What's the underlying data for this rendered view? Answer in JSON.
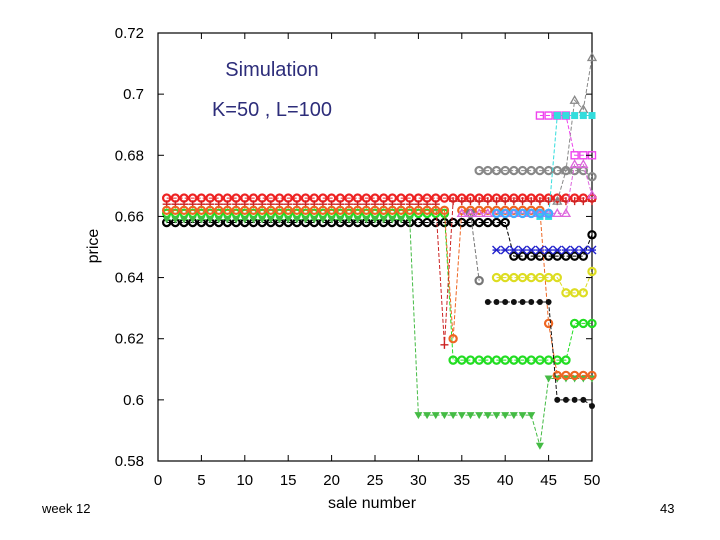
{
  "slide": {
    "footer_left": "week 12",
    "page_number": "43"
  },
  "chart_data": {
    "type": "line",
    "annotations": [
      "Simulation",
      "K=50 , L=100"
    ],
    "xlabel": "sale number",
    "ylabel": "price",
    "xlim": [
      0,
      50
    ],
    "ylim": [
      0.58,
      0.72
    ],
    "xticks": [
      0,
      5,
      10,
      15,
      20,
      25,
      30,
      35,
      40,
      45,
      50
    ],
    "yticks": [
      0.58,
      0.6,
      0.62,
      0.64,
      0.66,
      0.68,
      0.7,
      0.72
    ],
    "ytick_labels": [
      "0.58",
      "0.6",
      "0.62",
      "0.64",
      "0.66",
      "0.68",
      "0.7",
      "0.72"
    ],
    "grid": false,
    "series": [
      {
        "color": "#000000",
        "marker": "circle-open",
        "x": [
          1,
          2,
          3,
          4,
          5,
          6,
          7,
          8,
          9,
          10,
          11,
          12,
          13,
          14,
          15,
          16,
          17,
          18,
          19,
          20,
          21,
          22,
          23,
          24,
          25,
          26,
          27,
          28,
          29,
          30,
          31,
          32,
          33,
          34,
          35,
          36,
          37,
          38,
          39,
          40,
          41,
          42,
          43,
          44,
          45,
          46,
          47,
          48,
          49,
          50
        ],
        "y": [
          0.658,
          0.658,
          0.658,
          0.658,
          0.658,
          0.658,
          0.658,
          0.658,
          0.658,
          0.658,
          0.658,
          0.658,
          0.658,
          0.658,
          0.658,
          0.658,
          0.658,
          0.658,
          0.658,
          0.658,
          0.658,
          0.658,
          0.658,
          0.658,
          0.658,
          0.658,
          0.658,
          0.658,
          0.658,
          0.658,
          0.658,
          0.658,
          0.658,
          0.658,
          0.658,
          0.658,
          0.658,
          0.658,
          0.658,
          0.658,
          0.647,
          0.647,
          0.647,
          0.647,
          0.647,
          0.647,
          0.647,
          0.647,
          0.647,
          0.654
        ]
      },
      {
        "color": "#22dd22",
        "marker": "circle-open",
        "x": [
          1,
          2,
          3,
          4,
          5,
          6,
          7,
          8,
          9,
          10,
          11,
          12,
          13,
          14,
          15,
          16,
          17,
          18,
          19,
          20,
          21,
          22,
          23,
          24,
          25,
          26,
          27,
          28,
          29,
          30,
          31,
          32,
          33,
          34,
          35,
          36,
          37,
          38,
          39,
          40,
          41,
          42,
          43,
          44,
          45,
          46,
          47,
          48,
          49,
          50
        ],
        "y": [
          0.661,
          0.661,
          0.661,
          0.661,
          0.661,
          0.661,
          0.661,
          0.661,
          0.661,
          0.661,
          0.661,
          0.661,
          0.661,
          0.661,
          0.661,
          0.661,
          0.661,
          0.661,
          0.661,
          0.661,
          0.661,
          0.661,
          0.661,
          0.661,
          0.661,
          0.661,
          0.661,
          0.661,
          0.661,
          0.661,
          0.661,
          0.661,
          0.661,
          0.613,
          0.613,
          0.613,
          0.613,
          0.613,
          0.613,
          0.613,
          0.613,
          0.613,
          0.613,
          0.613,
          0.613,
          0.613,
          0.613,
          0.625,
          0.625,
          0.625
        ]
      },
      {
        "color": "#ee2222",
        "marker": "circle-open",
        "x": [
          1,
          2,
          3,
          4,
          5,
          6,
          7,
          8,
          9,
          10,
          11,
          12,
          13,
          14,
          15,
          16,
          17,
          18,
          19,
          20,
          21,
          22,
          23,
          24,
          25,
          26,
          27,
          28,
          29,
          30,
          31,
          32,
          33,
          34,
          35,
          36,
          37,
          38,
          39,
          40,
          41,
          42,
          43,
          44,
          45,
          46,
          47,
          48,
          49,
          50
        ],
        "y": [
          0.666,
          0.666,
          0.666,
          0.666,
          0.666,
          0.666,
          0.666,
          0.666,
          0.666,
          0.666,
          0.666,
          0.666,
          0.666,
          0.666,
          0.666,
          0.666,
          0.666,
          0.666,
          0.666,
          0.666,
          0.666,
          0.666,
          0.666,
          0.666,
          0.666,
          0.666,
          0.666,
          0.666,
          0.666,
          0.666,
          0.666,
          0.666,
          0.666,
          0.666,
          0.666,
          0.666,
          0.666,
          0.666,
          0.666,
          0.666,
          0.666,
          0.666,
          0.666,
          0.666,
          0.666,
          0.666,
          0.666,
          0.666,
          0.666,
          0.666
        ]
      },
      {
        "color": "#44bb44",
        "marker": "triangle-down",
        "x": [
          1,
          2,
          3,
          4,
          5,
          6,
          7,
          8,
          9,
          10,
          11,
          12,
          13,
          14,
          15,
          16,
          17,
          18,
          19,
          20,
          21,
          22,
          23,
          24,
          25,
          26,
          27,
          28,
          29,
          30,
          31,
          32,
          33,
          34,
          35,
          36,
          37,
          38,
          39,
          40,
          41,
          42,
          43,
          44,
          45,
          46,
          47,
          48,
          49,
          50
        ],
        "y": [
          0.659,
          0.659,
          0.659,
          0.659,
          0.659,
          0.659,
          0.659,
          0.659,
          0.659,
          0.659,
          0.659,
          0.659,
          0.659,
          0.659,
          0.659,
          0.659,
          0.659,
          0.659,
          0.659,
          0.659,
          0.659,
          0.659,
          0.659,
          0.659,
          0.659,
          0.659,
          0.659,
          0.659,
          0.659,
          0.595,
          0.595,
          0.595,
          0.595,
          0.595,
          0.595,
          0.595,
          0.595,
          0.595,
          0.595,
          0.595,
          0.595,
          0.595,
          0.595,
          0.585,
          0.607,
          0.607,
          0.607,
          0.607,
          0.607,
          0.607
        ]
      },
      {
        "color": "#cc2222",
        "marker": "plus",
        "x": [
          1,
          2,
          3,
          4,
          5,
          6,
          7,
          8,
          9,
          10,
          11,
          12,
          13,
          14,
          15,
          16,
          17,
          18,
          19,
          20,
          21,
          22,
          23,
          24,
          25,
          26,
          27,
          28,
          29,
          30,
          31,
          32,
          33,
          34,
          35,
          36,
          37,
          38,
          39,
          40,
          41,
          42,
          43,
          44,
          45,
          46,
          47,
          48,
          49,
          50
        ],
        "y": [
          0.664,
          0.664,
          0.664,
          0.664,
          0.664,
          0.664,
          0.664,
          0.664,
          0.664,
          0.664,
          0.664,
          0.664,
          0.664,
          0.664,
          0.664,
          0.664,
          0.664,
          0.664,
          0.664,
          0.664,
          0.664,
          0.664,
          0.664,
          0.664,
          0.664,
          0.664,
          0.664,
          0.664,
          0.664,
          0.664,
          0.664,
          0.664,
          0.618,
          0.665,
          0.665,
          0.665,
          0.665,
          0.665,
          0.665,
          0.665,
          0.665,
          0.665,
          0.665,
          0.665,
          0.665,
          0.665,
          0.665,
          0.665,
          0.665,
          0.665
        ]
      },
      {
        "color": "#ee6622",
        "marker": "circle-open",
        "x": [
          1,
          2,
          3,
          4,
          5,
          6,
          7,
          8,
          9,
          10,
          11,
          12,
          13,
          14,
          15,
          16,
          17,
          18,
          19,
          20,
          21,
          22,
          23,
          24,
          25,
          26,
          27,
          28,
          29,
          30,
          31,
          32,
          33,
          34,
          35,
          36,
          37,
          38,
          39,
          40,
          41,
          42,
          43,
          44,
          45,
          46,
          47,
          48,
          49,
          50
        ],
        "y": [
          0.662,
          0.662,
          0.662,
          0.662,
          0.662,
          0.662,
          0.662,
          0.662,
          0.662,
          0.662,
          0.662,
          0.662,
          0.662,
          0.662,
          0.662,
          0.662,
          0.662,
          0.662,
          0.662,
          0.662,
          0.662,
          0.662,
          0.662,
          0.662,
          0.662,
          0.662,
          0.662,
          0.662,
          0.662,
          0.662,
          0.662,
          0.662,
          0.662,
          0.62,
          0.662,
          0.662,
          0.662,
          0.662,
          0.662,
          0.662,
          0.662,
          0.662,
          0.662,
          0.662,
          0.625,
          0.608,
          0.608,
          0.608,
          0.608,
          0.608
        ]
      },
      {
        "color": "#888888",
        "marker": "circle-open",
        "x": [
          37,
          38,
          39,
          40,
          41,
          42,
          43,
          44,
          45,
          46,
          47,
          48,
          49,
          50
        ],
        "y": [
          0.675,
          0.675,
          0.675,
          0.675,
          0.675,
          0.675,
          0.675,
          0.675,
          0.675,
          0.675,
          0.675,
          0.675,
          0.675,
          0.673
        ]
      },
      {
        "color": "#777777",
        "marker": "circle-open",
        "x": [
          36,
          37
        ],
        "y": [
          0.661,
          0.639
        ]
      },
      {
        "color": "#888888",
        "marker": "triangle-up",
        "x": [
          46,
          47,
          48,
          49,
          50
        ],
        "y": [
          0.665,
          0.675,
          0.698,
          0.695,
          0.712
        ]
      },
      {
        "color": "#111111",
        "marker": "dot",
        "x": [
          38,
          39,
          40,
          41,
          42,
          43,
          44,
          45,
          46,
          47,
          48,
          49,
          50
        ],
        "y": [
          0.632,
          0.632,
          0.632,
          0.632,
          0.632,
          0.632,
          0.632,
          0.632,
          0.6,
          0.6,
          0.6,
          0.6,
          0.598
        ]
      },
      {
        "color": "#ee44ee",
        "marker": "square-open",
        "x": [
          44,
          45,
          46,
          47,
          48,
          49,
          50
        ],
        "y": [
          0.693,
          0.693,
          0.693,
          0.693,
          0.68,
          0.68,
          0.68
        ]
      },
      {
        "color": "#33dddd",
        "marker": "square",
        "x": [
          44,
          45,
          46,
          47,
          48,
          49,
          50
        ],
        "y": [
          0.66,
          0.66,
          0.693,
          0.693,
          0.693,
          0.693,
          0.693
        ]
      },
      {
        "color": "#dddd22",
        "marker": "circle-open",
        "x": [
          39,
          40,
          41,
          42,
          43,
          44,
          45,
          46,
          47,
          48,
          49,
          50
        ],
        "y": [
          0.64,
          0.64,
          0.64,
          0.64,
          0.64,
          0.64,
          0.64,
          0.64,
          0.635,
          0.635,
          0.635,
          0.642
        ]
      },
      {
        "color": "#2222cc",
        "marker": "cross",
        "x": [
          39,
          40,
          41,
          42,
          43,
          44,
          45,
          46,
          47,
          48,
          49,
          50
        ],
        "y": [
          0.649,
          0.649,
          0.649,
          0.649,
          0.649,
          0.649,
          0.649,
          0.649,
          0.649,
          0.649,
          0.649,
          0.649
        ]
      },
      {
        "color": "#dd66dd",
        "marker": "triangle-up",
        "x": [
          35,
          36,
          37,
          38,
          39,
          40,
          41,
          42,
          43,
          44,
          45,
          46,
          47,
          48,
          49,
          50
        ],
        "y": [
          0.661,
          0.661,
          0.661,
          0.661,
          0.661,
          0.661,
          0.661,
          0.661,
          0.661,
          0.661,
          0.661,
          0.661,
          0.661,
          0.677,
          0.677,
          0.667
        ]
      },
      {
        "color": "#44aaff",
        "marker": "circle-open",
        "x": [
          39,
          40,
          41,
          42,
          43,
          44,
          45
        ],
        "y": [
          0.661,
          0.661,
          0.661,
          0.661,
          0.661,
          0.661,
          0.661
        ]
      }
    ]
  }
}
